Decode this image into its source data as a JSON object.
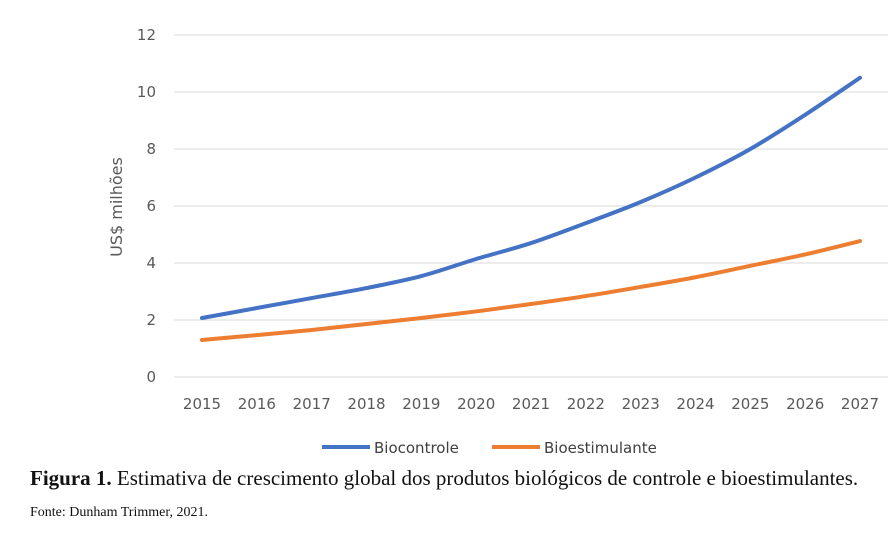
{
  "chart_data": {
    "type": "line",
    "title": "",
    "xlabel": "",
    "ylabel": "US$ milhões",
    "ylim": [
      0,
      12
    ],
    "yticks": [
      0,
      2,
      4,
      6,
      8,
      10,
      12
    ],
    "grid": true,
    "legend_position": "bottom",
    "x": [
      2015,
      2016,
      2017,
      2018,
      2019,
      2020,
      2021,
      2022,
      2023,
      2024,
      2025,
      2026,
      2027
    ],
    "series": [
      {
        "name": "Biocontrole",
        "color": "#4472C4",
        "values": [
          2.07,
          2.42,
          2.77,
          3.12,
          3.54,
          4.14,
          4.7,
          5.4,
          6.14,
          7.0,
          8.0,
          9.2,
          10.5
        ]
      },
      {
        "name": "Bioestimulante",
        "color": "#ED7D31",
        "values": [
          1.3,
          1.47,
          1.65,
          1.86,
          2.07,
          2.3,
          2.56,
          2.84,
          3.16,
          3.5,
          3.9,
          4.3,
          4.77
        ]
      }
    ]
  },
  "caption": {
    "label": "Figura 1.",
    "text": " Estimativa de crescimento global dos produtos biológicos de controle e bioestimulantes.",
    "source": "Fonte: Dunham Trimmer, 2021."
  }
}
